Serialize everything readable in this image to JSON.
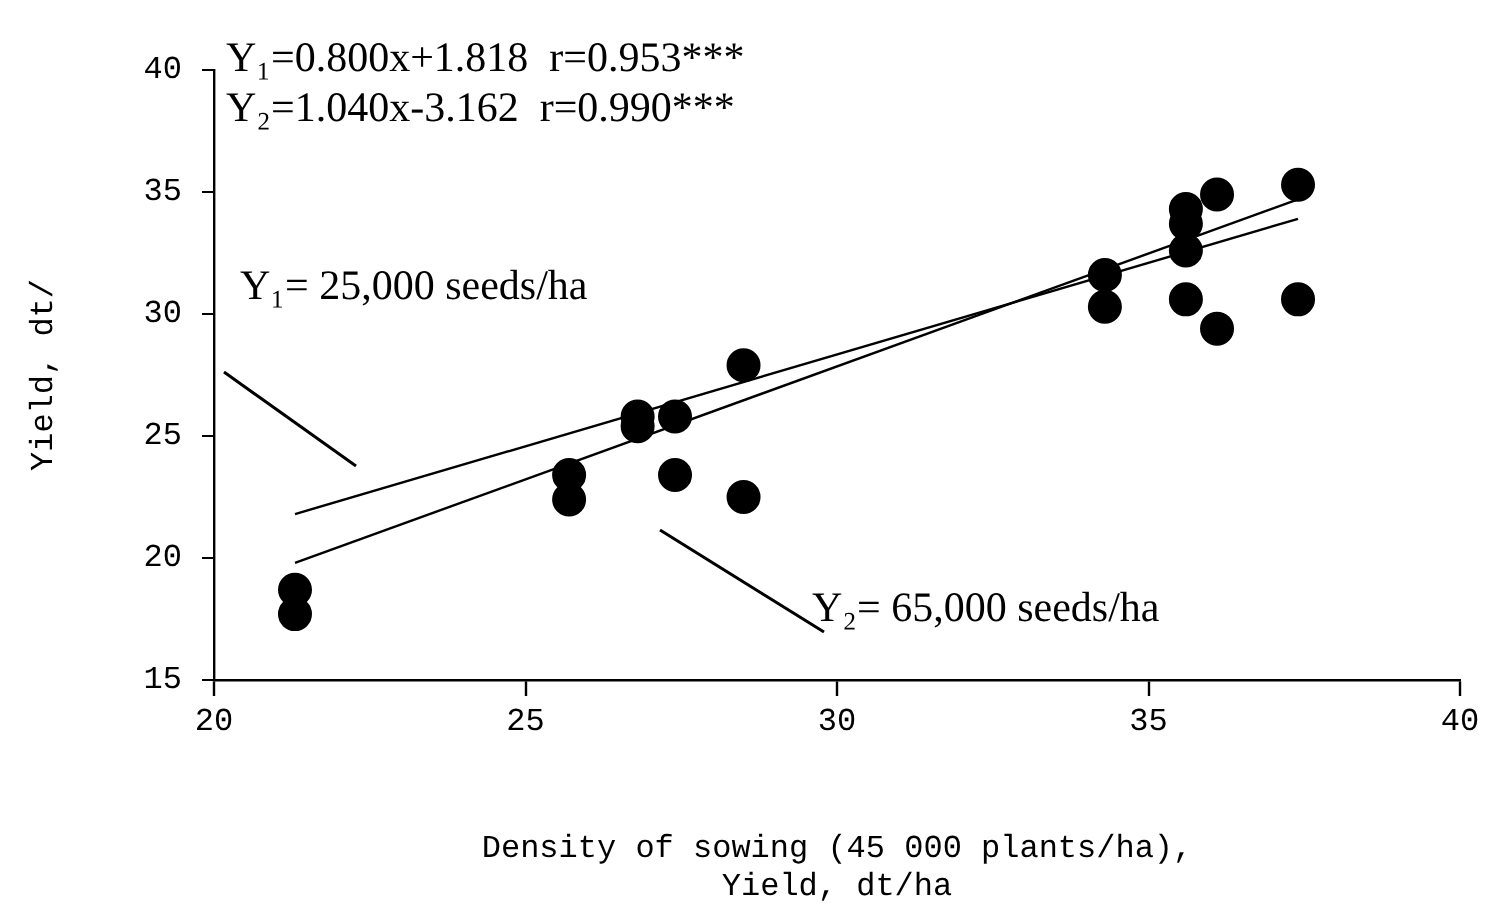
{
  "chart_data": {
    "type": "scatter",
    "xlabel": "Density of sowing (45 000 plants/ha),\nYield, dt/ha",
    "ylabel": "Yield, dt/",
    "annotations": [
      "Y₁=0.800x+1.818  r=0.953***",
      "Y₂=1.040x-3.162  r=0.990***",
      "Y₁= 25,000 seeds/ha",
      "Y₂= 65,000 seeds/ha"
    ],
    "series": [
      {
        "type": "scatter",
        "color": "#000000",
        "marker": "circle",
        "x": [
          21.3,
          21.3,
          25.7,
          25.7,
          26.8,
          26.8,
          27.4,
          27.4,
          28.5,
          28.5,
          34.3,
          34.3,
          35.6,
          35.6,
          35.6,
          35.6,
          36.1,
          36.1,
          37.4,
          37.4
        ],
        "values": [
          18.7,
          17.7,
          23.4,
          22.4,
          25.8,
          25.4,
          25.8,
          23.4,
          27.9,
          22.5,
          31.6,
          30.3,
          34.3,
          33.7,
          32.6,
          30.6,
          34.9,
          29.4,
          35.3,
          30.6
        ]
      },
      {
        "type": "line",
        "color": "#000000",
        "x": [
          21.3,
          37.4
        ],
        "values": [
          21.8,
          33.9
        ]
      },
      {
        "type": "line",
        "color": "#000000",
        "x": [
          21.3,
          37.4
        ],
        "values": [
          19.8,
          34.7
        ]
      }
    ],
    "xlim": [
      20,
      40
    ],
    "xticks": [
      20,
      25,
      30,
      35,
      40
    ],
    "ylim": [
      15,
      40
    ],
    "yticks": [
      15,
      20,
      25,
      30,
      35,
      40
    ],
    "grid": false,
    "legend": false
  }
}
